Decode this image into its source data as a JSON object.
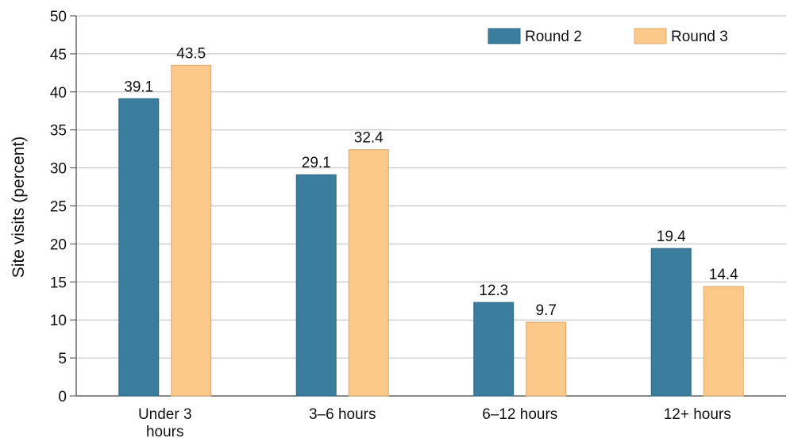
{
  "chart_data": {
    "type": "bar",
    "title": "",
    "xlabel": "",
    "ylabel": "Site visits (percent)",
    "ylim": [
      0,
      50
    ],
    "yticks": [
      0,
      5,
      10,
      15,
      20,
      25,
      30,
      35,
      40,
      45,
      50
    ],
    "grid": true,
    "legend_position": "top-right",
    "categories": [
      "Under 3 hours",
      "3–6 hours",
      "6–12 hours",
      "12+ hours"
    ],
    "category_lines": [
      [
        "Under 3",
        "hours"
      ],
      [
        "3–6 hours"
      ],
      [
        "6–12 hours"
      ],
      [
        "12+ hours"
      ]
    ],
    "series": [
      {
        "name": "Round 2",
        "color": "#3a7d9c",
        "values": [
          39.1,
          29.1,
          12.3,
          19.4
        ],
        "labels": [
          "39.1",
          "29.1",
          "12.3",
          "19.4"
        ]
      },
      {
        "name": "Round 3",
        "color": "#fdc98b",
        "values": [
          43.5,
          32.4,
          9.7,
          14.4
        ],
        "labels": [
          "43.5",
          "32.4",
          "9.7",
          "14.4"
        ]
      }
    ]
  }
}
